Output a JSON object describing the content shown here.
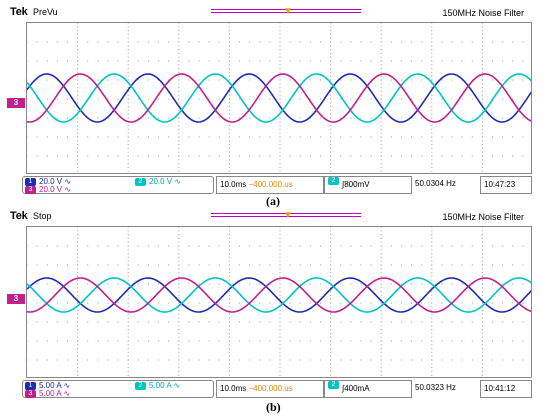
{
  "panel_a": {
    "brand": "Tek",
    "mode": "PreVu",
    "noise_filter": "150MHz  Noise Filter",
    "ch3_marker": "3",
    "ch1": {
      "num": "1",
      "scale": "20.0 V",
      "coupling": "∿"
    },
    "ch2": {
      "num": "2",
      "scale": "20.0 V",
      "coupling": "∿"
    },
    "ch3": {
      "num": "3",
      "scale": "20.0 V",
      "coupling": "∿"
    },
    "timebase": "10.0ms",
    "position": "−400.000.us",
    "trigger_ch": "2",
    "trigger_level": "∫800mV",
    "frequency": "50.0304 Hz",
    "clock": "10:47:23",
    "caption": "(a)"
  },
  "panel_b": {
    "brand": "Tek",
    "mode": "Stop",
    "noise_filter": "150MHz  Noise Filter",
    "ch3_marker": "3",
    "ch1": {
      "num": "1",
      "scale": "5.00 A",
      "coupling": "∿"
    },
    "ch2": {
      "num": "2",
      "scale": "5.00 A",
      "coupling": "∿"
    },
    "ch3": {
      "num": "3",
      "scale": "5.00 A",
      "coupling": "∿"
    },
    "timebase": "10.0ms",
    "position": "−400.000.us",
    "trigger_ch": "2",
    "trigger_level": "∫400mA",
    "frequency": "50.0323 Hz",
    "clock": "10:41:12",
    "caption": "(b)"
  },
  "colors": {
    "ch1": "#1e2cb0",
    "ch2": "#00c4c4",
    "ch3": "#c0208c",
    "trigger": "#f5a500"
  },
  "icons": {
    "trigger_marker": "trigger-position-icon",
    "coupling": "ac-coupling-icon"
  }
}
